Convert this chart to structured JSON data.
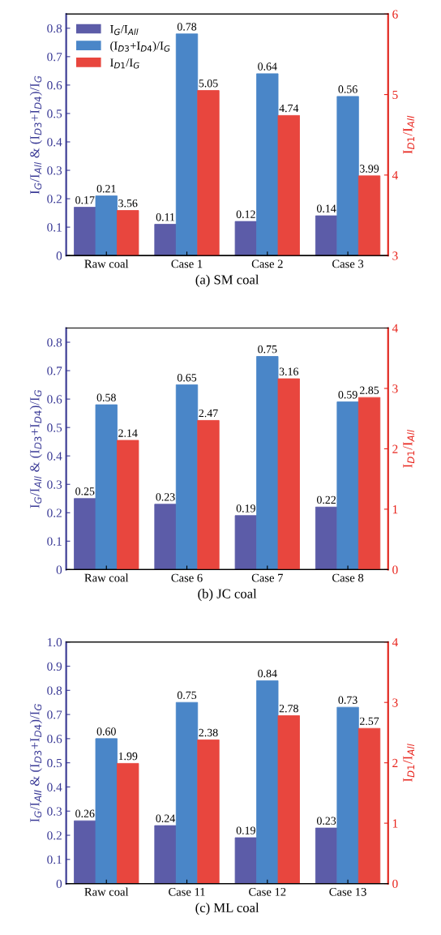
{
  "chart_data": [
    {
      "type": "bar",
      "xlabel": "(a) SM coal",
      "ylabel": "I$_{G}$/I$_{All}$ & (I$_{D3}$+I$_{D4}$)/I$_{G}$",
      "y2label": "I$_{D1}$/I$_{All}$",
      "categories": [
        "Raw coal",
        "Case 1",
        "Case 2",
        "Case 3"
      ],
      "series": [
        {
          "name": "I$_{G}$/I$_{All}$",
          "color": "#5c5ca8",
          "values": [
            0.17,
            0.11,
            0.12,
            0.14
          ],
          "value_labels": [
            "0.17",
            "0.11",
            "0.12",
            "0.14"
          ]
        },
        {
          "name": "(I$_{D3}$+I$_{D4}$)/I$_{G}$",
          "color": "#4a86c8",
          "values": [
            0.21,
            0.78,
            0.64,
            0.56
          ],
          "value_labels": [
            "0.21",
            "0.78",
            "0.64",
            "0.56"
          ]
        },
        {
          "name": "I$_{D1}$/I$_{G}$",
          "color": "#e8463e",
          "axis": "y2",
          "values": [
            3.56,
            5.05,
            4.74,
            3.99
          ],
          "value_labels": [
            "3.56",
            "5.05",
            "4.74",
            "3.99"
          ]
        }
      ],
      "ylim": [
        0,
        0.85
      ],
      "yticks": [
        0,
        0.1,
        0.2,
        0.3,
        0.4,
        0.5,
        0.6,
        0.7,
        0.8
      ],
      "y2lim": [
        3,
        6
      ],
      "y2ticks": [
        3,
        4,
        5,
        6
      ],
      "legend": "top left"
    },
    {
      "type": "bar",
      "xlabel": "(b) JC coal",
      "ylabel": "I$_{G}$/I$_{All}$ & (I$_{D3}$+I$_{D4}$)/I$_{G}$",
      "y2label": "I$_{D1}$/I$_{All}$",
      "categories": [
        "Raw coal",
        "Case 6",
        "Case 7",
        "Case 8"
      ],
      "series": [
        {
          "color": "#5c5ca8",
          "values": [
            0.25,
            0.23,
            0.19,
            0.22
          ],
          "value_labels": [
            "0.25",
            "0.23",
            "0.19",
            "0.22"
          ]
        },
        {
          "color": "#4a86c8",
          "values": [
            0.58,
            0.65,
            0.75,
            0.59
          ],
          "value_labels": [
            "0.58",
            "0.65",
            "0.75",
            "0.59"
          ]
        },
        {
          "color": "#e8463e",
          "axis": "y2",
          "values": [
            2.14,
            2.47,
            3.16,
            2.85
          ],
          "value_labels": [
            "2.14",
            "2.47",
            "3.16",
            "2.85"
          ]
        }
      ],
      "ylim": [
        0,
        0.85
      ],
      "yticks": [
        0,
        0.1,
        0.2,
        0.3,
        0.4,
        0.5,
        0.6,
        0.7,
        0.8
      ],
      "y2lim": [
        0,
        4
      ],
      "y2ticks": [
        0,
        1,
        2,
        3,
        4
      ]
    },
    {
      "type": "bar",
      "xlabel": "(c) ML coal",
      "ylabel": "I$_{G}$/I$_{All}$ & (I$_{D3}$+I$_{D4}$)/I$_{G}$",
      "y2label": "I$_{D1}$/I$_{All}$",
      "categories": [
        "Raw coal",
        "Case 11",
        "Case 12",
        "Case 13"
      ],
      "series": [
        {
          "color": "#5c5ca8",
          "values": [
            0.26,
            0.24,
            0.19,
            0.23
          ],
          "value_labels": [
            "0.26",
            "0.24",
            "0.19",
            "0.23"
          ]
        },
        {
          "color": "#4a86c8",
          "values": [
            0.6,
            0.75,
            0.84,
            0.73
          ],
          "value_labels": [
            "0.60",
            "0.75",
            "0.84",
            "0.73"
          ]
        },
        {
          "color": "#e8463e",
          "axis": "y2",
          "values": [
            1.99,
            2.38,
            2.78,
            2.57
          ],
          "value_labels": [
            "1.99",
            "2.38",
            "2.78",
            "2.57"
          ]
        }
      ],
      "ylim": [
        0,
        1.0
      ],
      "yticks": [
        {
          "value": 0,
          "label": "0"
        },
        {
          "value": 0.1,
          "label": "0.1"
        },
        {
          "value": 0.2,
          "label": "0.2"
        },
        {
          "value": 0.3,
          "label": "0.3"
        },
        {
          "value": 0.4,
          "label": "0.4"
        },
        {
          "value": 0.5,
          "label": "0.5"
        },
        {
          "value": 0.6,
          "label": "0.6"
        },
        {
          "value": 0.7,
          "label": "0.7"
        },
        {
          "value": 0.8,
          "label": "0.8"
        },
        {
          "value": 0.9,
          "label": "0.9"
        },
        {
          "value": 1.0,
          "label": "1.0"
        }
      ],
      "y2lim": [
        0,
        4
      ],
      "y2ticks": [
        0,
        1,
        2,
        3,
        4
      ]
    }
  ]
}
